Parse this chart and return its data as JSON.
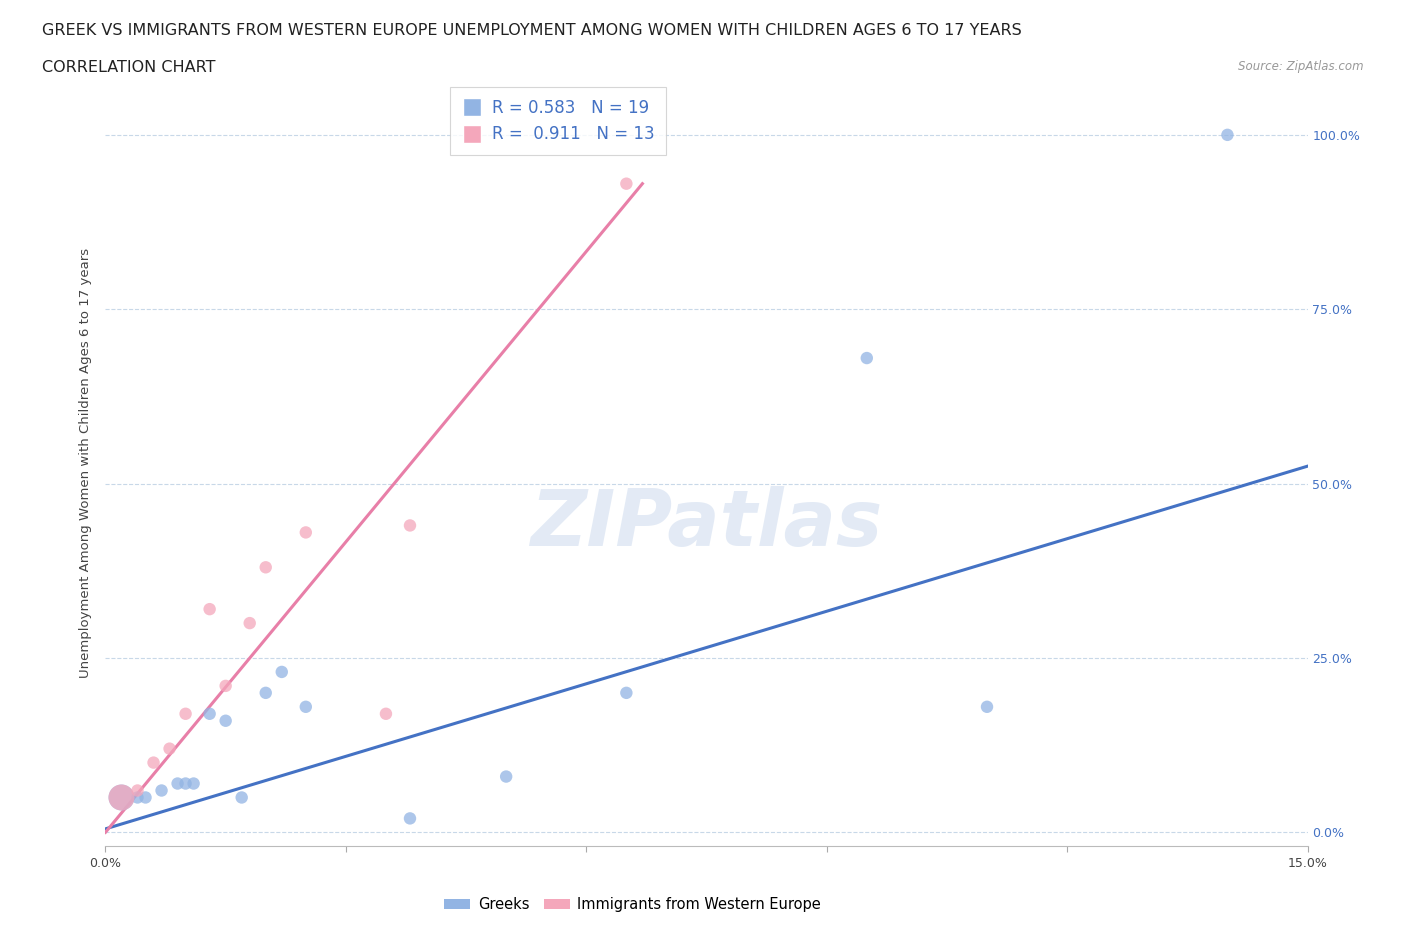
{
  "title_line1": "GREEK VS IMMIGRANTS FROM WESTERN EUROPE UNEMPLOYMENT AMONG WOMEN WITH CHILDREN AGES 6 TO 17 YEARS",
  "title_line2": "CORRELATION CHART",
  "source_text": "Source: ZipAtlas.com",
  "ylabel": "Unemployment Among Women with Children Ages 6 to 17 years",
  "watermark": "ZIPatlas",
  "xlim": [
    0.0,
    0.15
  ],
  "ylim": [
    -0.02,
    1.08
  ],
  "x_ticks": [
    0.0,
    0.03,
    0.06,
    0.09,
    0.12,
    0.15
  ],
  "x_tick_labels": [
    "0.0%",
    "",
    "",
    "",
    "",
    "15.0%"
  ],
  "y_ticks": [
    0.0,
    0.25,
    0.5,
    0.75,
    1.0
  ],
  "y_tick_labels": [
    "0.0%",
    "25.0%",
    "50.0%",
    "75.0%",
    "100.0%"
  ],
  "greek_color": "#92b4e3",
  "immigrant_color": "#f4a7bb",
  "greek_line_color": "#4472c4",
  "immigrant_line_color": "#e87fa8",
  "tick_color": "#4472c4",
  "greek_R": 0.583,
  "greek_N": 19,
  "immigrant_R": 0.911,
  "immigrant_N": 13,
  "greeks_x": [
    0.002,
    0.004,
    0.005,
    0.007,
    0.009,
    0.01,
    0.011,
    0.013,
    0.015,
    0.017,
    0.02,
    0.022,
    0.025,
    0.038,
    0.05,
    0.065,
    0.095,
    0.11,
    0.14
  ],
  "greeks_y": [
    0.05,
    0.05,
    0.05,
    0.06,
    0.07,
    0.07,
    0.07,
    0.17,
    0.16,
    0.05,
    0.2,
    0.23,
    0.18,
    0.02,
    0.08,
    0.2,
    0.68,
    0.18,
    1.0
  ],
  "greeks_size": [
    350,
    80,
    80,
    80,
    80,
    80,
    80,
    80,
    80,
    80,
    80,
    80,
    80,
    80,
    80,
    80,
    80,
    80,
    80
  ],
  "immigrants_x": [
    0.002,
    0.004,
    0.006,
    0.008,
    0.01,
    0.013,
    0.015,
    0.018,
    0.02,
    0.025,
    0.035,
    0.038,
    0.065
  ],
  "immigrants_y": [
    0.05,
    0.06,
    0.1,
    0.12,
    0.17,
    0.32,
    0.21,
    0.3,
    0.38,
    0.43,
    0.17,
    0.44,
    0.93
  ],
  "immigrants_size": [
    350,
    80,
    80,
    80,
    80,
    80,
    80,
    80,
    80,
    80,
    80,
    80,
    80
  ],
  "greek_trend_x": [
    0.0,
    0.15
  ],
  "greek_trend_y": [
    0.005,
    0.525
  ],
  "immigrant_trend_x": [
    0.0,
    0.067
  ],
  "immigrant_trend_y": [
    0.0,
    0.93
  ],
  "background_color": "#ffffff",
  "grid_color": "#c8d8e8",
  "title_fontsize": 11.5,
  "subtitle_fontsize": 11.5,
  "axis_label_fontsize": 9.5,
  "tick_fontsize": 9,
  "legend_fontsize": 12
}
